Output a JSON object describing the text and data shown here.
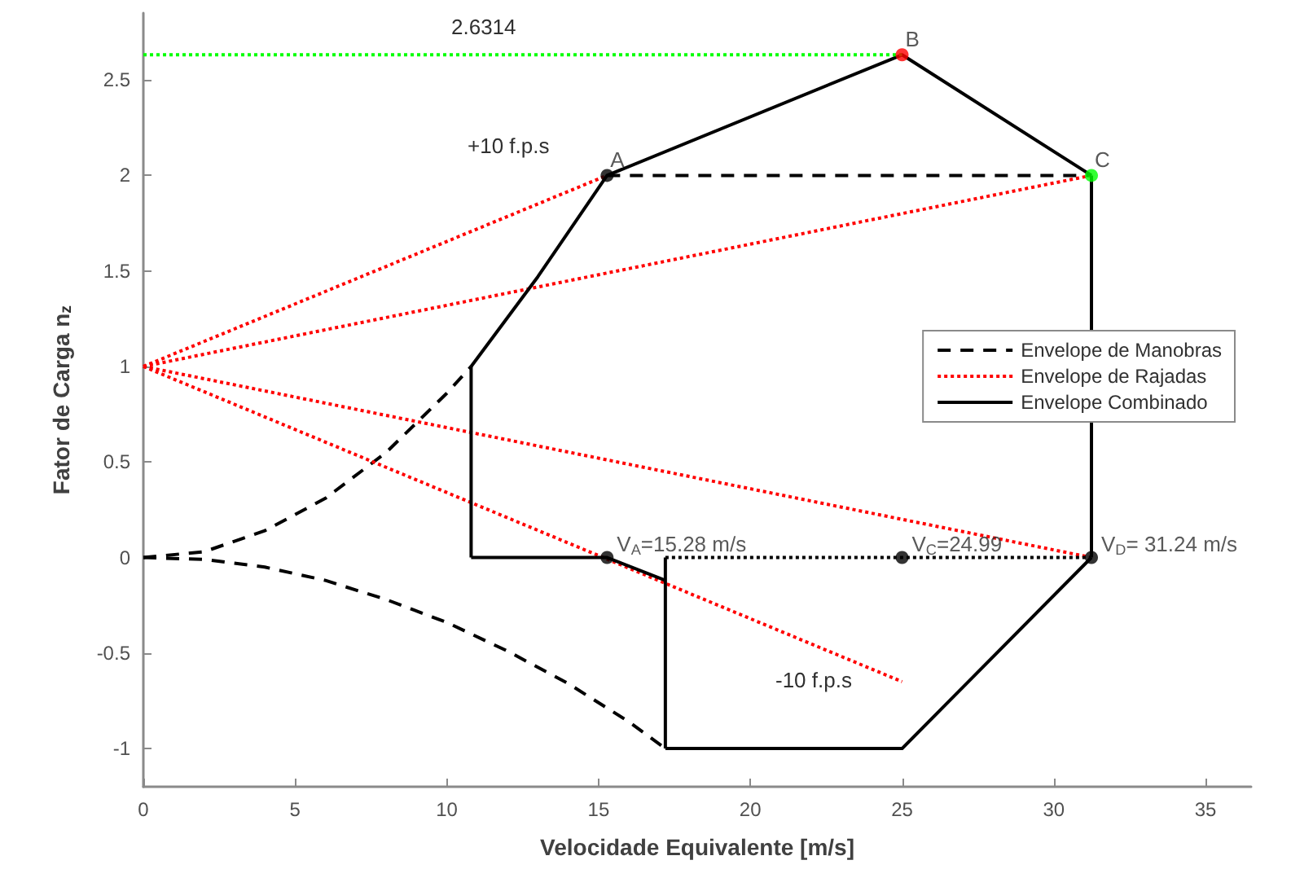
{
  "chart_data": {
    "type": "line",
    "xlabel": "Velocidade Equivalente [m/s]",
    "ylabel": "Fator de Carga n$_{z}$",
    "xlim": [
      0,
      36.5
    ],
    "xticks": [
      0,
      5,
      10,
      15,
      20,
      25,
      30,
      35
    ],
    "ylim": [
      -1.2,
      2.85
    ],
    "yticks": [
      -1,
      -0.5,
      0,
      0.5,
      1,
      1.5,
      2,
      2.5
    ],
    "grid": false,
    "legend": "right",
    "marker": "none",
    "series": [
      {
        "name": "Envelope de Manobras",
        "color": "#000000",
        "line_style": "dashed",
        "x": [
          0,
          2,
          4,
          6,
          8,
          10,
          10.8
        ],
        "values": [
          0,
          0.03,
          0.14,
          0.31,
          0.55,
          0.86,
          1.0
        ]
      },
      {
        "color": "#000000",
        "line_style": "dashed",
        "x": [
          15.28,
          31.24
        ],
        "values": [
          2,
          2
        ]
      },
      {
        "color": "#000000",
        "line_style": "dashed",
        "x": [
          0,
          2,
          4,
          6,
          8,
          10,
          12,
          14,
          16,
          17.2
        ],
        "values": [
          0,
          -0.01,
          -0.05,
          -0.12,
          -0.22,
          -0.34,
          -0.49,
          -0.66,
          -0.86,
          -1.0
        ]
      },
      {
        "name": "Envelope de Rajadas",
        "color": "#ff0000",
        "line_style": "dotted",
        "x": [
          0,
          15.28
        ],
        "values": [
          1,
          2
        ]
      },
      {
        "color": "#ff0000",
        "line_style": "dotted",
        "x": [
          0,
          31.24
        ],
        "values": [
          1,
          2
        ]
      },
      {
        "color": "#ff0000",
        "line_style": "dotted",
        "x": [
          0,
          31.24
        ],
        "values": [
          1,
          0
        ]
      },
      {
        "color": "#ff0000",
        "line_style": "dotted",
        "x": [
          0,
          25
        ],
        "values": [
          1,
          -0.65
        ]
      },
      {
        "name": "Envelope Combinado",
        "color": "#000000",
        "line_style": "solid",
        "x": [
          10.8,
          13,
          15.28,
          25,
          31.24
        ],
        "values": [
          1,
          1.47,
          2,
          2.6314,
          2
        ]
      },
      {
        "color": "#000000",
        "line_style": "solid",
        "x": [
          31.24,
          31.24
        ],
        "values": [
          2,
          0
        ]
      },
      {
        "color": "#000000",
        "line_style": "solid",
        "x": [
          10.8,
          10.8
        ],
        "values": [
          1,
          0
        ]
      },
      {
        "color": "#000000",
        "line_style": "solid",
        "x": [
          10.8,
          15.28,
          17.2
        ],
        "values": [
          0,
          0,
          -0.12
        ]
      },
      {
        "color": "#000000",
        "line_style": "solid",
        "x": [
          17.2,
          17.2
        ],
        "values": [
          0,
          -1
        ]
      },
      {
        "color": "#000000",
        "line_style": "solid",
        "x": [
          17.2,
          25,
          31.24
        ],
        "values": [
          -1,
          -1,
          0
        ]
      },
      {
        "color": "#00ff00",
        "line_style": "dotted",
        "x": [
          0,
          25
        ],
        "values": [
          2.6314,
          2.6314
        ]
      },
      {
        "color": "#000000",
        "line_style": "dotted",
        "x": [
          17.2,
          31.24
        ],
        "values": [
          0,
          0
        ]
      },
      {
        "type": "scatter",
        "marker": "circle",
        "x": [
          15.28,
          25,
          31.24,
          15.28,
          25,
          31.24
        ],
        "values": [
          2,
          2.6314,
          2,
          0,
          0,
          0
        ],
        "colors": [
          "#000000",
          "#ff0000",
          "#00ff00",
          "#000000",
          "#000000",
          "#000000"
        ]
      }
    ],
    "annotations": [
      "2.6314",
      "+10 f.p.s",
      "-10 f.p.s",
      {
        "text": "A",
        "x": 15.28,
        "y": 2
      },
      {
        "text": "B",
        "x": 25,
        "y": 2.6314
      },
      {
        "text": "C",
        "x": 31.24,
        "y": 2
      },
      {
        "text": "V$_{A}$=15.28 m/s",
        "x": 15.28,
        "y": 0
      },
      {
        "text": "V$_{C}$=24.99",
        "x": 25,
        "y": 0
      },
      {
        "text": "V$_{D}$= 31.24 m/s",
        "x": 31.24,
        "y": 0
      }
    ]
  }
}
